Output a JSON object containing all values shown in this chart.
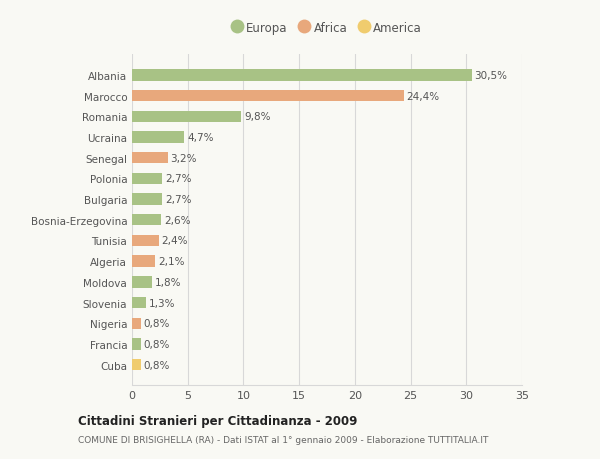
{
  "categories": [
    "Albania",
    "Marocco",
    "Romania",
    "Ucraina",
    "Senegal",
    "Polonia",
    "Bulgaria",
    "Bosnia-Erzegovina",
    "Tunisia",
    "Algeria",
    "Moldova",
    "Slovenia",
    "Nigeria",
    "Francia",
    "Cuba"
  ],
  "values": [
    30.5,
    24.4,
    9.8,
    4.7,
    3.2,
    2.7,
    2.7,
    2.6,
    2.4,
    2.1,
    1.8,
    1.3,
    0.8,
    0.8,
    0.8
  ],
  "labels": [
    "30,5%",
    "24,4%",
    "9,8%",
    "4,7%",
    "3,2%",
    "2,7%",
    "2,7%",
    "2,6%",
    "2,4%",
    "2,1%",
    "1,8%",
    "1,3%",
    "0,8%",
    "0,8%",
    "0,8%"
  ],
  "colors": [
    "#a8c285",
    "#e8a87c",
    "#a8c285",
    "#a8c285",
    "#e8a87c",
    "#a8c285",
    "#a8c285",
    "#a8c285",
    "#e8a87c",
    "#e8a87c",
    "#a8c285",
    "#a8c285",
    "#e8a87c",
    "#a8c285",
    "#f0cc6e"
  ],
  "continent": [
    "Europa",
    "Africa",
    "Europa",
    "Europa",
    "Africa",
    "Europa",
    "Europa",
    "Europa",
    "Africa",
    "Africa",
    "Europa",
    "Europa",
    "Africa",
    "Europa",
    "America"
  ],
  "legend_labels": [
    "Europa",
    "Africa",
    "America"
  ],
  "legend_colors": [
    "#a8c285",
    "#e8a87c",
    "#f0cc6e"
  ],
  "title_bold": "Cittadini Stranieri per Cittadinanza - 2009",
  "subtitle": "COMUNE DI BRISIGHELLA (RA) - Dati ISTAT al 1° gennaio 2009 - Elaborazione TUTTITALIA.IT",
  "xlim": [
    0,
    35
  ],
  "xticks": [
    0,
    5,
    10,
    15,
    20,
    25,
    30,
    35
  ],
  "background_color": "#f9f9f4",
  "grid_color": "#d8d8d8",
  "bar_height": 0.55
}
